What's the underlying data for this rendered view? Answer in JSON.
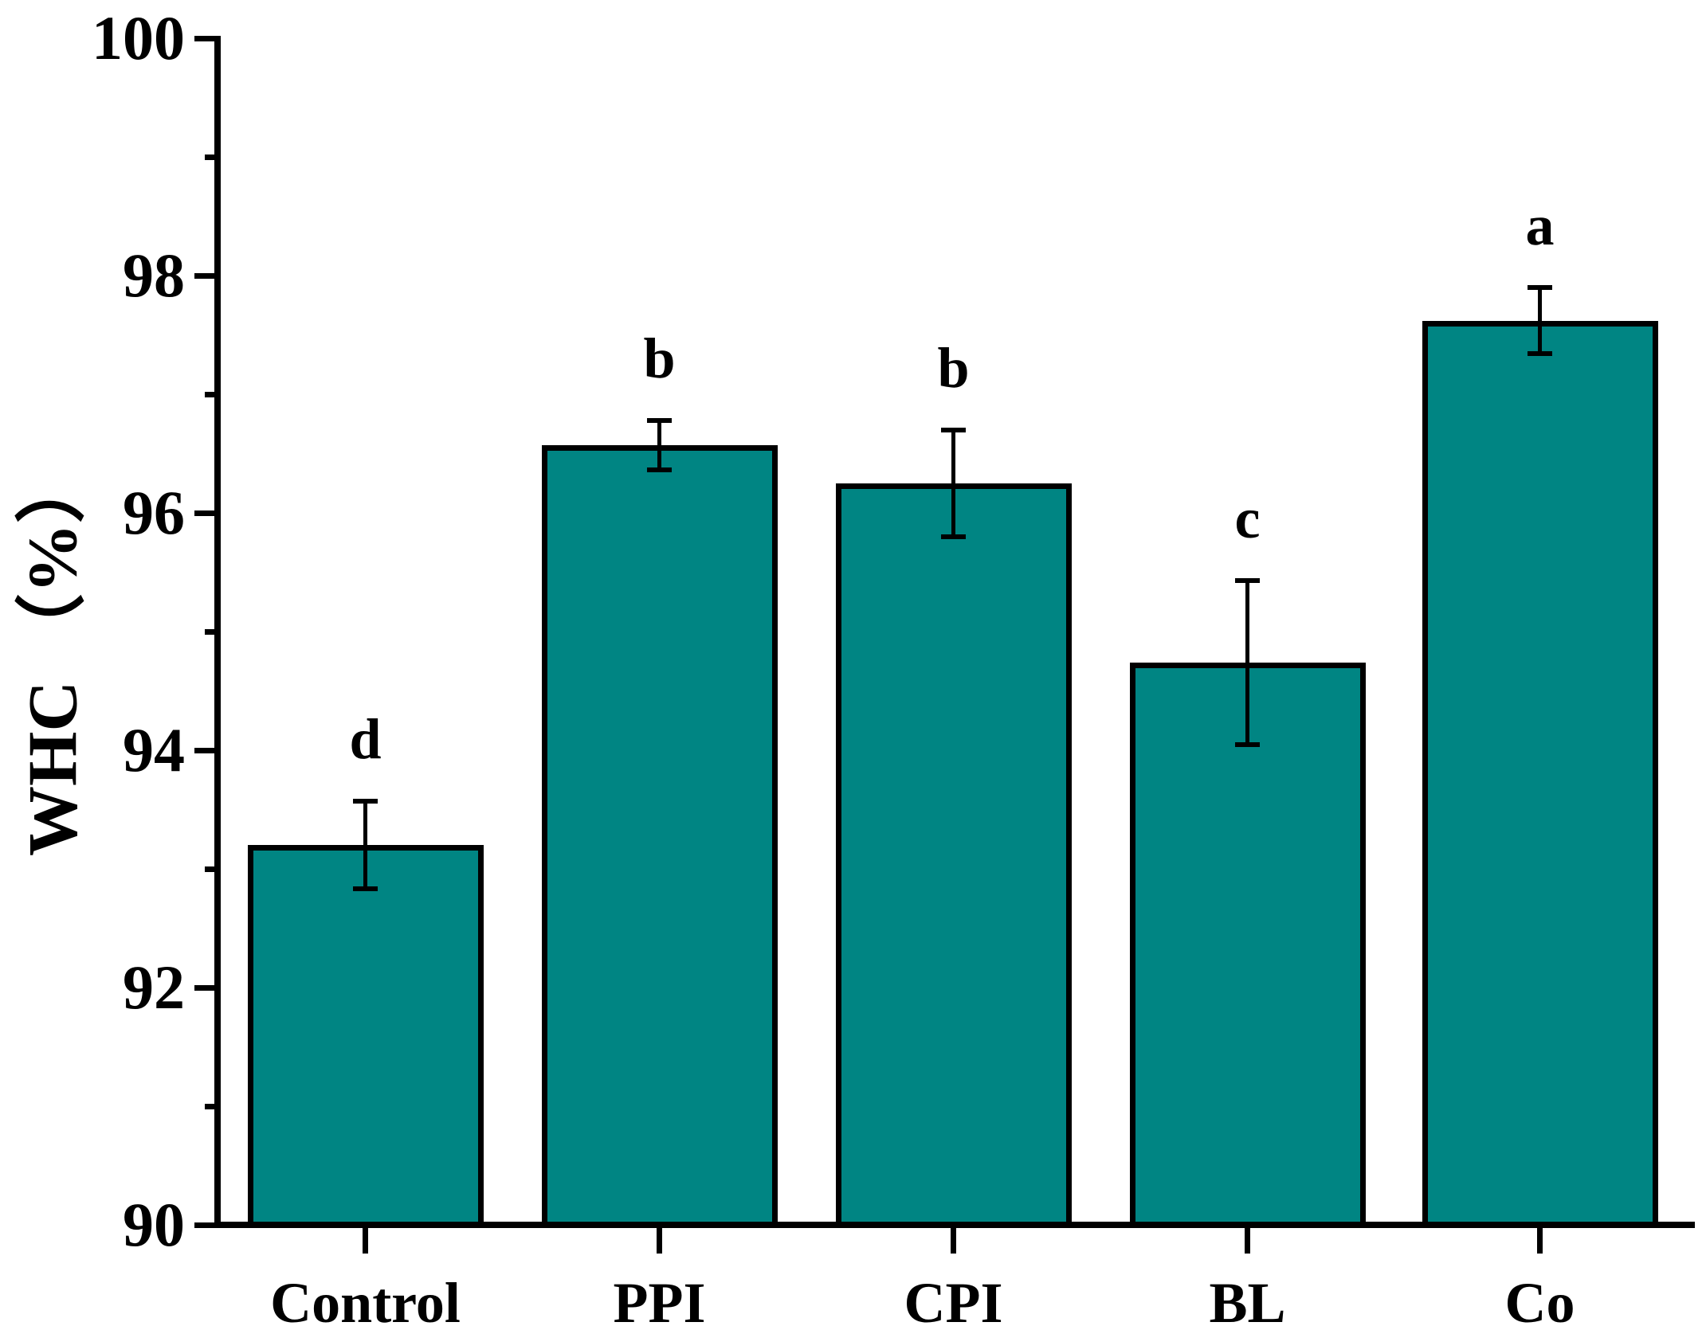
{
  "chart_data": {
    "type": "bar",
    "title": "",
    "xlabel": "",
    "ylabel": "WHC （%）",
    "ylim": [
      90,
      100
    ],
    "ytick_step_major": 2,
    "ytick_step_minor": 1,
    "grid": false,
    "legend_position": "none",
    "categories": [
      "Control",
      "PPI",
      "CPI",
      "BL",
      "Co"
    ],
    "values": [
      93.2,
      96.57,
      96.25,
      94.74,
      97.62
    ],
    "errors": [
      0.37,
      0.21,
      0.45,
      0.69,
      0.28
    ],
    "sig_letters": [
      "d",
      "b",
      "b",
      "c",
      "a"
    ],
    "bar_color": "#008583",
    "bar_edge_color": "#000000",
    "error_color": "#000000",
    "axis_color": "#000000",
    "background_color": "#ffffff"
  }
}
